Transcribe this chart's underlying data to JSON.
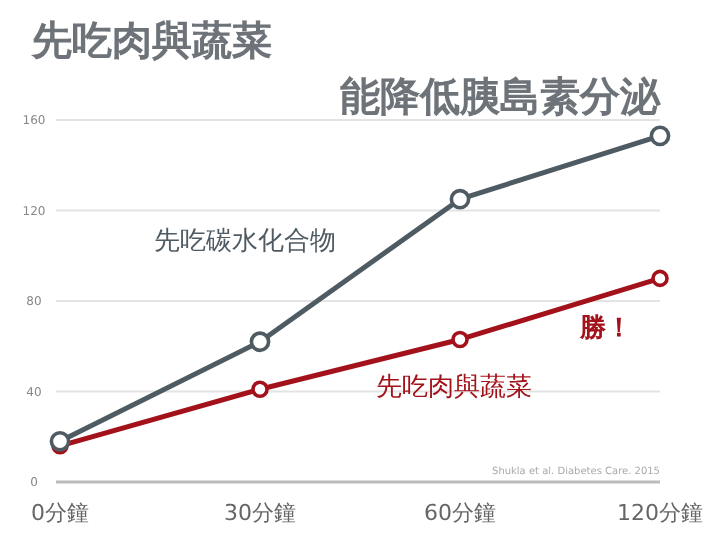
{
  "chart_data": {
    "type": "line",
    "title": "先吃肉與蔬菜",
    "subtitle": "能降低胰島素分泌",
    "categories": [
      "0分鐘",
      "30分鐘",
      "60分鐘",
      "120分鐘"
    ],
    "series": [
      {
        "name": "先吃碳水化合物",
        "color": "#4f5b63",
        "values": [
          18,
          62,
          125,
          153
        ]
      },
      {
        "name": "先吃肉與蔬菜",
        "color": "#a3121a",
        "values": [
          16,
          41,
          63,
          90
        ]
      }
    ],
    "ylim": [
      0,
      160
    ],
    "yticks": [
      0,
      40,
      80,
      120,
      160
    ],
    "grid": "y",
    "marker": "circle",
    "line_style": "solid",
    "annotations": [
      "勝！",
      "Shukla et al. Diabetes Care. 2015"
    ]
  }
}
